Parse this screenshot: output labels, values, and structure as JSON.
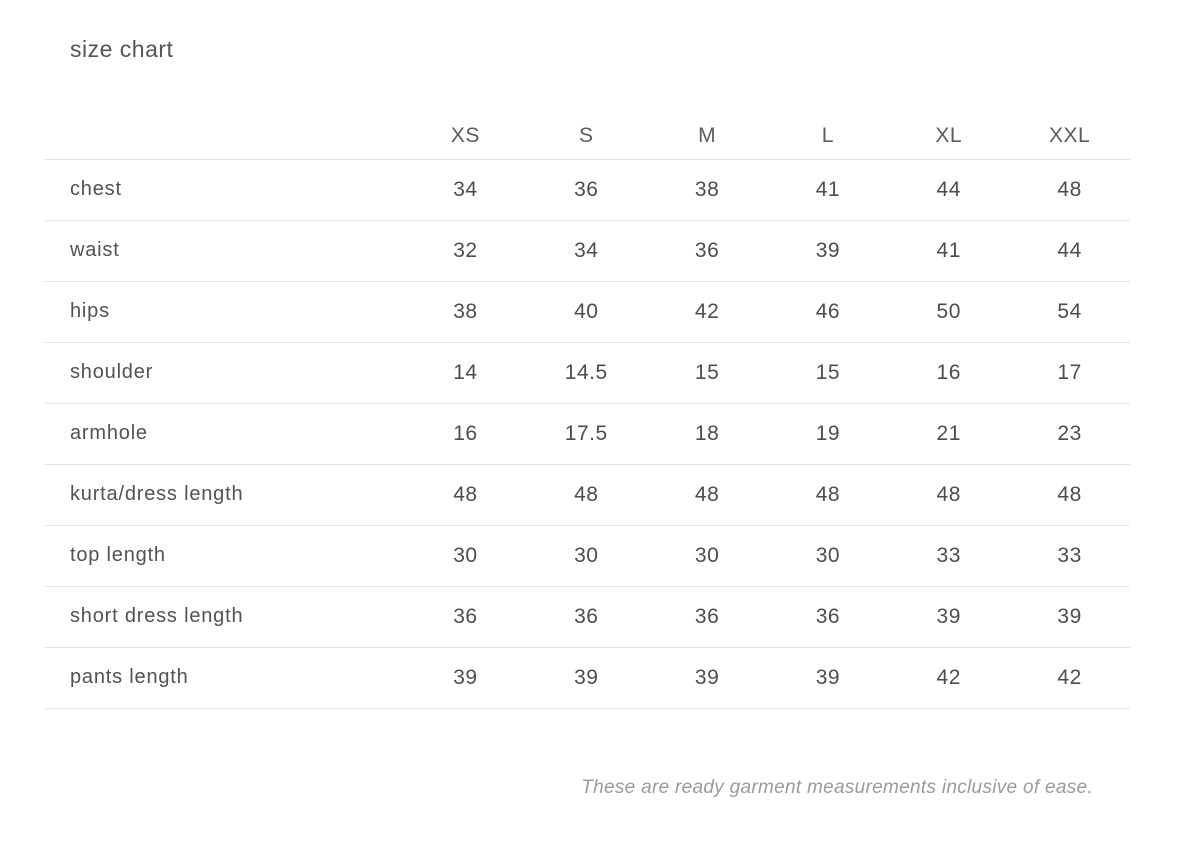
{
  "colors": {
    "background": "#ffffff",
    "text": "#4d4d4d",
    "muted": "#9b9b9b",
    "divider": "#e3e3e3"
  },
  "chart_data": {
    "type": "table",
    "title": "size chart",
    "columns": [
      "XS",
      "S",
      "M",
      "L",
      "XL",
      "XXL"
    ],
    "rows": [
      {
        "label": "chest",
        "values": [
          "34",
          "36",
          "38",
          "41",
          "44",
          "48"
        ]
      },
      {
        "label": "waist",
        "values": [
          "32",
          "34",
          "36",
          "39",
          "41",
          "44"
        ]
      },
      {
        "label": "hips",
        "values": [
          "38",
          "40",
          "42",
          "46",
          "50",
          "54"
        ]
      },
      {
        "label": "shoulder",
        "values": [
          "14",
          "14.5",
          "15",
          "15",
          "16",
          "17"
        ]
      },
      {
        "label": "armhole",
        "values": [
          "16",
          "17.5",
          "18",
          "19",
          "21",
          "23"
        ]
      },
      {
        "label": "kurta/dress length",
        "values": [
          "48",
          "48",
          "48",
          "48",
          "48",
          "48"
        ]
      },
      {
        "label": "top length",
        "values": [
          "30",
          "30",
          "30",
          "30",
          "33",
          "33"
        ]
      },
      {
        "label": "short dress length",
        "values": [
          "36",
          "36",
          "36",
          "36",
          "39",
          "39"
        ]
      },
      {
        "label": "pants length",
        "values": [
          "39",
          "39",
          "39",
          "39",
          "42",
          "42"
        ]
      }
    ],
    "footnote": "These are ready garment measurements inclusive of ease."
  }
}
